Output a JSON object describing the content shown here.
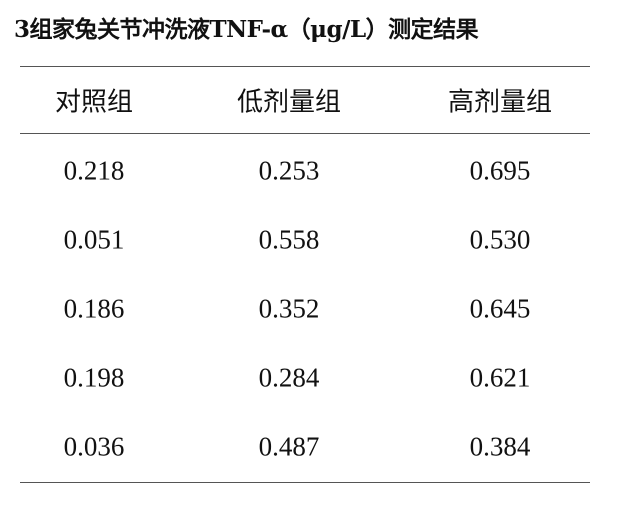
{
  "title": "3组家兔关节冲洗液TNF-α（μg/L）测定结果",
  "table": {
    "header": [
      "对照组",
      "低剂量组",
      "高剂量组"
    ],
    "rows": [
      [
        "0.218",
        "0.253",
        "0.695"
      ],
      [
        "0.051",
        "0.558",
        "0.530"
      ],
      [
        "0.186",
        "0.352",
        "0.645"
      ],
      [
        "0.198",
        "0.284",
        "0.621"
      ],
      [
        "0.036",
        "0.487",
        "0.384"
      ]
    ]
  }
}
